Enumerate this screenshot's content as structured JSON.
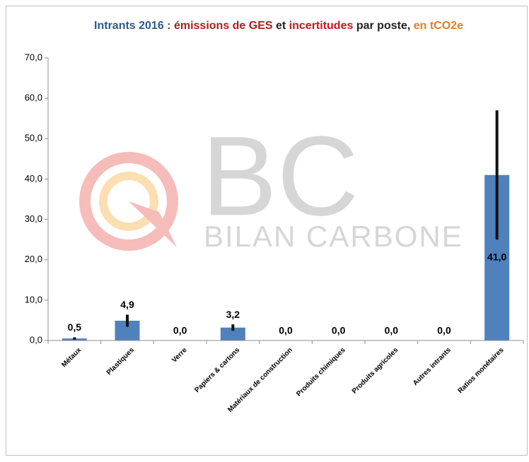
{
  "chart_data": {
    "type": "bar",
    "title": [
      {
        "text": "Intrants 2016 : ",
        "color": "#2e5a8a"
      },
      {
        "text": "émissions de GES",
        "color": "#b01c1c"
      },
      {
        "text": " et ",
        "color": "#222222"
      },
      {
        "text": "incertitudes",
        "color": "#c8141e"
      },
      {
        "text": " par poste, ",
        "color": "#222222"
      },
      {
        "text": "en tCO2e",
        "color": "#e87d1e"
      }
    ],
    "watermark": [
      "BC",
      "BILAN CARBONE"
    ],
    "categories": [
      "Métaux",
      "Plastiques",
      "Verre",
      "Papiers & cartons",
      "Matériaux de construction",
      "Produits chimiques",
      "Produits agricoles",
      "Autres intrants",
      "Ratios monétaires"
    ],
    "values": [
      0.5,
      4.9,
      0,
      3.2,
      0,
      0,
      0,
      0,
      41.0
    ],
    "value_labels": [
      "0,5",
      "4,9",
      "0,0",
      "3,2",
      "0,0",
      "0,0",
      "0,0",
      "0,0",
      "41,0"
    ],
    "errors": [
      0.3,
      1.5,
      0,
      0.8,
      0,
      0,
      0,
      0,
      16
    ],
    "color": "#4f81bd",
    "error_color": "#111111",
    "ylim": [
      0,
      70
    ],
    "yticks": [
      {
        "value": 0,
        "label": "0,0"
      },
      {
        "value": 10,
        "label": "10,0"
      },
      {
        "value": 20,
        "label": "20,0"
      },
      {
        "value": 30,
        "label": "30,0"
      },
      {
        "value": 40,
        "label": "40,0"
      },
      {
        "value": 50,
        "label": "50,0"
      },
      {
        "value": 60,
        "label": "60,0"
      },
      {
        "value": 70,
        "label": "70,0"
      }
    ],
    "grid": false
  }
}
